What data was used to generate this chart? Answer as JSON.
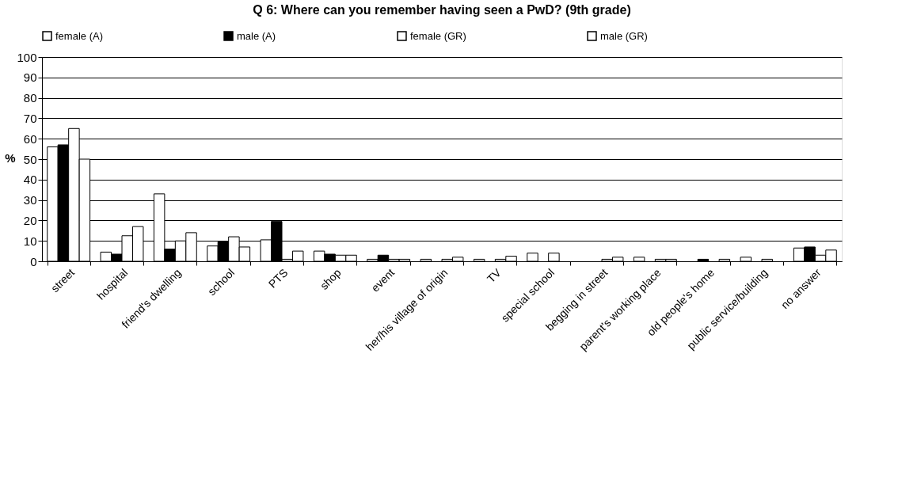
{
  "chart_data": {
    "type": "bar",
    "title": "Q 6: Where can you remember having seen a PwD? (9th grade)",
    "ylabel": "%",
    "categories": [
      "street",
      "hospital",
      "friend's dwelling",
      "school",
      "PTS",
      "shop",
      "event",
      "her/his village of origin",
      "TV",
      "special school",
      "begging in street",
      "parent's working place",
      "old people's home",
      "public service/building",
      "no answer"
    ],
    "series": [
      {
        "name": "female (A)",
        "color": "#ffffff",
        "values": [
          56,
          4.5,
          33,
          7.5,
          10.5,
          5,
          1,
          1,
          1,
          4,
          null,
          2,
          null,
          2,
          6.5
        ]
      },
      {
        "name": "male (A)",
        "color": "#000000",
        "values": [
          57,
          3.5,
          6,
          9.5,
          19.5,
          3.5,
          3,
          null,
          null,
          null,
          null,
          null,
          1,
          null,
          7
        ]
      },
      {
        "name": "female (GR)",
        "color": "#ffffff",
        "values": [
          65,
          12.5,
          10,
          12,
          1,
          3,
          1,
          1,
          1,
          4,
          1,
          1,
          null,
          1,
          3
        ]
      },
      {
        "name": "male (GR)",
        "color": "#ffffff",
        "values": [
          50,
          17,
          14,
          7,
          5,
          3,
          1,
          2,
          2.5,
          null,
          2,
          1,
          1,
          null,
          5.5
        ]
      }
    ],
    "ylim": [
      0,
      100
    ],
    "yticks": [
      0,
      10,
      20,
      30,
      40,
      50,
      60,
      70,
      80,
      90,
      100
    ],
    "grid": "y",
    "legend": "top"
  }
}
